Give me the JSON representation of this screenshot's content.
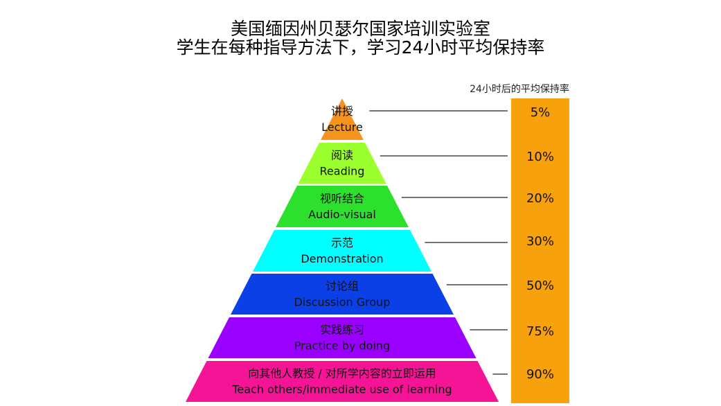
{
  "title_line1": "美国缅因州贝瑟尔国家培训实验室",
  "title_line2": "学生在每种指导方法下，学习24小时平均保持率",
  "bar_title": "24小时后的平均保持率",
  "bar_color": "#f7a10c",
  "levels": [
    {
      "cn": "讲授",
      "en": "Lecture",
      "rate": "5%",
      "color": "#f7941d"
    },
    {
      "cn": "阅读",
      "en": "Reading",
      "rate": "10%",
      "color": "#9cff2e"
    },
    {
      "cn": "视听结合",
      "en": "Audio-visual",
      "rate": "20%",
      "color": "#2ee02e"
    },
    {
      "cn": "示范",
      "en": "Demonstration",
      "rate": "30%",
      "color": "#00ffff"
    },
    {
      "cn": "讨论组",
      "en": "Discussion Group",
      "rate": "50%",
      "color": "#0a40e6"
    },
    {
      "cn": "实践练习",
      "en": "Practice by doing",
      "rate": "75%",
      "color": "#9a00ff"
    },
    {
      "cn": "向其他人教授 / 对所学内容的立即运用",
      "en": "Teach others/immediate use of learning",
      "rate": "90%",
      "color": "#f51496"
    }
  ]
}
